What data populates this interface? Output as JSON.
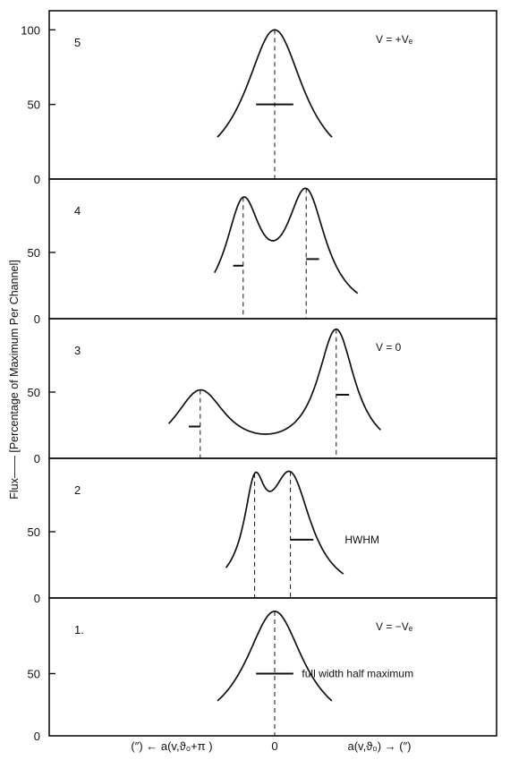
{
  "chart_data": {
    "type": "line",
    "ylabel": "Flux—— [Percentage of Maximum Per Channel]",
    "x_labels": {
      "left": "(″) ← a(v,ϑ₀+π )",
      "zero": "0",
      "right": "a(v,ϑ₀) → (″)"
    },
    "panels": [
      {
        "number": "5",
        "annotation": "V = +Vₑ",
        "ylim": [
          0,
          108
        ],
        "yticks": [
          {
            "v": 0,
            "label": "0"
          },
          {
            "v": 50,
            "label": "50"
          },
          {
            "v": 100,
            "label": "100"
          }
        ],
        "peaks": [
          {
            "center": 0,
            "amp": 100,
            "width": 1.25
          }
        ],
        "xrange": [
          -2.0,
          2.0
        ],
        "markers": [
          {
            "x": 0
          }
        ],
        "bars": [
          {
            "x1": -0.65,
            "x2": 0.65,
            "y": 50
          }
        ],
        "labels": []
      },
      {
        "number": "4",
        "annotation": "",
        "ylim": [
          0,
          100
        ],
        "yticks": [
          {
            "v": 0,
            "label": "0"
          },
          {
            "v": 50,
            "label": "50"
          }
        ],
        "peaks": [
          {
            "center": -1.1,
            "amp": 80,
            "width": 0.75
          },
          {
            "center": 1.1,
            "amp": 90,
            "width": 0.85
          }
        ],
        "xrange": [
          -2.1,
          2.9
        ],
        "markers": [
          {
            "x": -1.1
          },
          {
            "x": 1.1
          }
        ],
        "bars": [
          {
            "x1": -1.45,
            "x2": -1.1,
            "y": 40
          },
          {
            "x1": 1.1,
            "x2": 1.55,
            "y": 45
          }
        ],
        "labels": []
      },
      {
        "number": "3",
        "annotation": "V = 0",
        "ylim": [
          0,
          100
        ],
        "yticks": [
          {
            "v": 0,
            "label": "0"
          },
          {
            "v": 50,
            "label": "50"
          }
        ],
        "peaks": [
          {
            "center": -2.6,
            "amp": 49,
            "width": 1.1
          },
          {
            "center": 2.15,
            "amp": 95,
            "width": 0.8
          }
        ],
        "xrange": [
          -3.7,
          3.7
        ],
        "markers": [
          {
            "x": -2.6
          },
          {
            "x": 2.15
          }
        ],
        "bars": [
          {
            "x1": -3.0,
            "x2": -2.6,
            "y": 24
          },
          {
            "x1": 2.15,
            "x2": 2.6,
            "y": 48
          }
        ],
        "labels": []
      },
      {
        "number": "2",
        "annotation": "",
        "ylim": [
          0,
          100
        ],
        "yticks": [
          {
            "v": 0,
            "label": "0"
          },
          {
            "v": 50,
            "label": "50"
          }
        ],
        "peaks": [
          {
            "center": -0.7,
            "amp": 64,
            "width": 0.45
          },
          {
            "center": 0.55,
            "amp": 88,
            "width": 0.9
          }
        ],
        "xrange": [
          -1.7,
          2.4
        ],
        "markers": [
          {
            "x": -0.7
          },
          {
            "x": 0.55
          }
        ],
        "bars": [
          {
            "x1": 0.55,
            "x2": 1.35,
            "y": 44
          }
        ],
        "labels": [
          {
            "text": "HWHM",
            "x": 2.45,
            "y": 44
          }
        ]
      },
      {
        "number": "1.",
        "annotation": "V = −Vₑ",
        "ylim": [
          0,
          105
        ],
        "yticks": [
          {
            "v": 0,
            "label": "0"
          },
          {
            "v": 50,
            "label": "50"
          }
        ],
        "peaks": [
          {
            "center": 0,
            "amp": 100,
            "width": 1.25
          }
        ],
        "xrange": [
          -2.0,
          2.0
        ],
        "markers": [
          {
            "x": 0
          }
        ],
        "bars": [
          {
            "x1": -0.65,
            "x2": 0.65,
            "y": 50
          }
        ],
        "labels": [
          {
            "text": "full width half  maximum",
            "x": 0.95,
            "y": 50
          }
        ]
      }
    ]
  }
}
